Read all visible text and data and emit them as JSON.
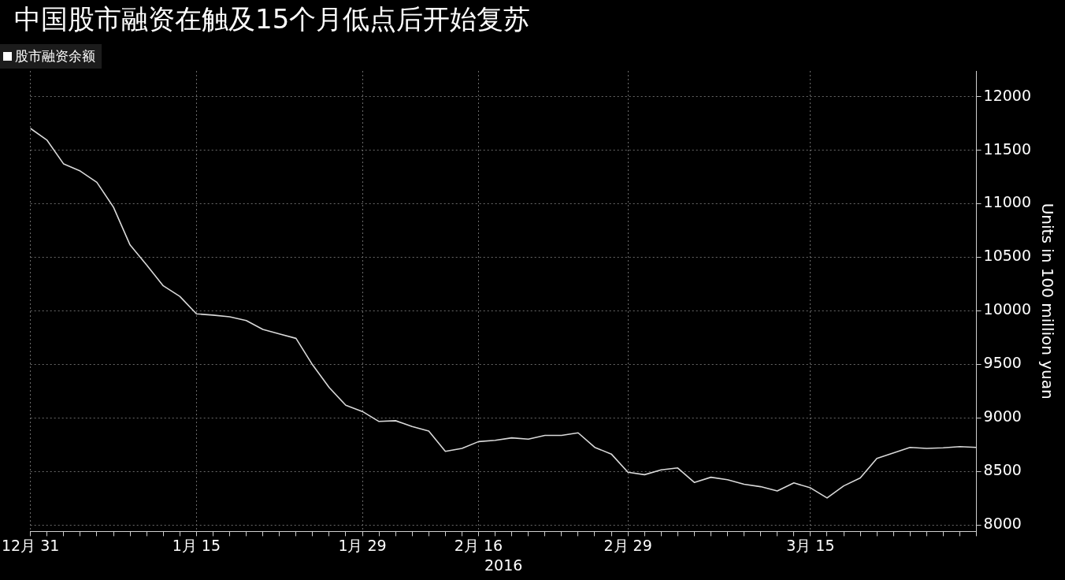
{
  "chart_data": {
    "type": "line",
    "title": "中国股市融资在触及15个月低点后开始复苏",
    "xlabel": "2016",
    "ylabel": "Units in 100 million yuan",
    "categories": [
      "12月 31",
      null,
      null,
      null,
      null,
      null,
      null,
      null,
      null,
      null,
      "1月 15",
      null,
      null,
      null,
      null,
      null,
      null,
      null,
      null,
      null,
      "1月 29",
      null,
      null,
      null,
      null,
      null,
      null,
      "2月 16",
      null,
      null,
      null,
      null,
      null,
      null,
      null,
      null,
      "2月 29",
      null,
      null,
      null,
      null,
      null,
      null,
      null,
      null,
      null,
      null,
      "3月 15",
      null,
      null,
      null,
      null,
      null,
      null,
      null,
      null,
      null,
      null
    ],
    "series": [
      {
        "name": "股市融资余额",
        "color": "#d9d9d9",
        "values": [
          11703,
          11593,
          11371,
          11305,
          11200,
          10968,
          10615,
          10428,
          10234,
          10135,
          9972,
          9960,
          9944,
          9909,
          9827,
          9785,
          9743,
          9495,
          9284,
          9118,
          9060,
          8967,
          8974,
          8919,
          8877,
          8688,
          8716,
          8779,
          8791,
          8814,
          8802,
          8837,
          8837,
          8861,
          8725,
          8663,
          8493,
          8470,
          8515,
          8533,
          8398,
          8446,
          8423,
          8381,
          8358,
          8318,
          8393,
          8347,
          8253,
          8365,
          8440,
          8622,
          8674,
          8725,
          8716,
          8721,
          8732,
          8725
        ]
      }
    ],
    "ylim": [
      7940,
      12240
    ],
    "yticks": [
      8000,
      8500,
      9000,
      9500,
      10000,
      10500,
      11000,
      11500,
      12000
    ],
    "grid": true,
    "legend": "top left",
    "marker": "none",
    "line_style": "solid"
  }
}
